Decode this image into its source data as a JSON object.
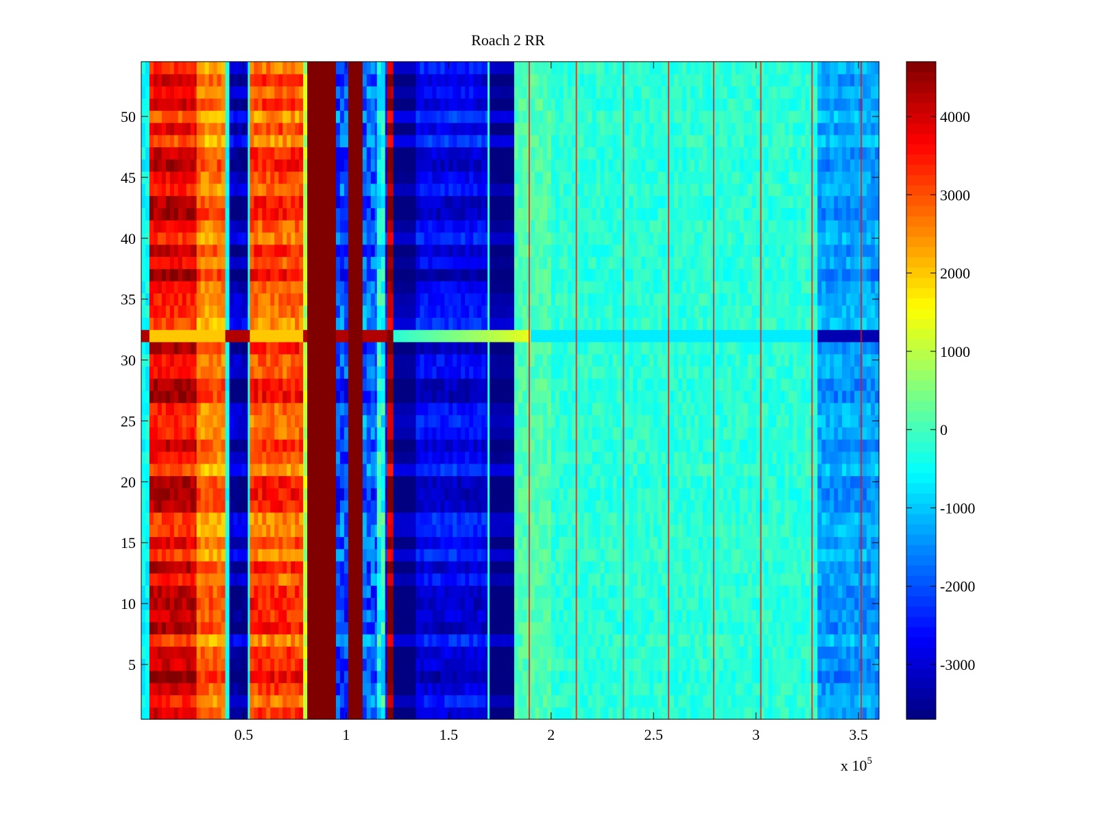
{
  "chart_data": {
    "type": "heatmap",
    "title": "Roach 2 RR",
    "xlabel": "",
    "ylabel": "",
    "x_exponent_label": "x 10",
    "x_exponent_power": "5",
    "xlim": [
      0,
      360000
    ],
    "ylim": [
      0.5,
      54.5
    ],
    "x_ticks": [
      {
        "value": 50000,
        "label": "0.5"
      },
      {
        "value": 100000,
        "label": "1"
      },
      {
        "value": 150000,
        "label": "1.5"
      },
      {
        "value": 200000,
        "label": "2"
      },
      {
        "value": 250000,
        "label": "2.5"
      },
      {
        "value": 300000,
        "label": "3"
      },
      {
        "value": 350000,
        "label": "3.5"
      }
    ],
    "y_ticks": [
      {
        "value": 5,
        "label": "5"
      },
      {
        "value": 10,
        "label": "10"
      },
      {
        "value": 15,
        "label": "15"
      },
      {
        "value": 20,
        "label": "20"
      },
      {
        "value": 25,
        "label": "25"
      },
      {
        "value": 30,
        "label": "30"
      },
      {
        "value": 35,
        "label": "35"
      },
      {
        "value": 40,
        "label": "40"
      },
      {
        "value": 45,
        "label": "45"
      },
      {
        "value": 50,
        "label": "50"
      }
    ],
    "colorbar": {
      "clim": [
        -3700,
        4700
      ],
      "colormap": "jet",
      "ticks": [
        {
          "value": 4000,
          "label": "4000"
        },
        {
          "value": 3000,
          "label": "3000"
        },
        {
          "value": 2000,
          "label": "2000"
        },
        {
          "value": 1000,
          "label": "1000"
        },
        {
          "value": 0,
          "label": "0"
        },
        {
          "value": -1000,
          "label": "-1000"
        },
        {
          "value": -2000,
          "label": "-2000"
        },
        {
          "value": -3000,
          "label": "-3000"
        }
      ]
    },
    "rows": 54,
    "highlight_row": 32,
    "column_bands": [
      {
        "x0": 0,
        "x1": 4000,
        "base": -500,
        "jitter": 700
      },
      {
        "x0": 4000,
        "x1": 27000,
        "base": 3700,
        "jitter": 700
      },
      {
        "x0": 27000,
        "x1": 41000,
        "base": 2600,
        "jitter": 800
      },
      {
        "x0": 41000,
        "x1": 43000,
        "base": -400,
        "jitter": 600
      },
      {
        "x0": 43000,
        "x1": 52000,
        "base": -3200,
        "jitter": 500
      },
      {
        "x0": 52000,
        "x1": 53000,
        "base": -200,
        "jitter": 600
      },
      {
        "x0": 53000,
        "x1": 79000,
        "base": 3000,
        "jitter": 900
      },
      {
        "x0": 79000,
        "x1": 81000,
        "base": 1000,
        "jitter": 800
      },
      {
        "x0": 81000,
        "x1": 95000,
        "base": 4700,
        "jitter": 0
      },
      {
        "x0": 95000,
        "x1": 101000,
        "base": -2000,
        "jitter": 1400
      },
      {
        "x0": 101000,
        "x1": 108000,
        "base": 4700,
        "jitter": 0
      },
      {
        "x0": 108000,
        "x1": 115000,
        "base": -1800,
        "jitter": 1500
      },
      {
        "x0": 115000,
        "x1": 119000,
        "base": -400,
        "jitter": 1500
      },
      {
        "x0": 119000,
        "x1": 120000,
        "base": -2500,
        "jitter": 800
      },
      {
        "x0": 120000,
        "x1": 123000,
        "base": 4400,
        "jitter": 300
      },
      {
        "x0": 123000,
        "x1": 134000,
        "base": -3550,
        "jitter": 100
      },
      {
        "x0": 134000,
        "x1": 169000,
        "base": -2700,
        "jitter": 600
      },
      {
        "x0": 169000,
        "x1": 170000,
        "base": -200,
        "jitter": 400
      },
      {
        "x0": 170000,
        "x1": 182000,
        "base": -3600,
        "jitter": 100
      },
      {
        "x0": 182000,
        "x1": 200000,
        "base": 100,
        "jitter": 600
      },
      {
        "x0": 200000,
        "x1": 330000,
        "base": -200,
        "jitter": 600
      },
      {
        "x0": 330000,
        "x1": 360000,
        "base": -1300,
        "jitter": 700
      }
    ],
    "spike_columns": [
      189000,
      212000,
      235000,
      257000,
      279000,
      302000,
      327000,
      351000
    ]
  }
}
